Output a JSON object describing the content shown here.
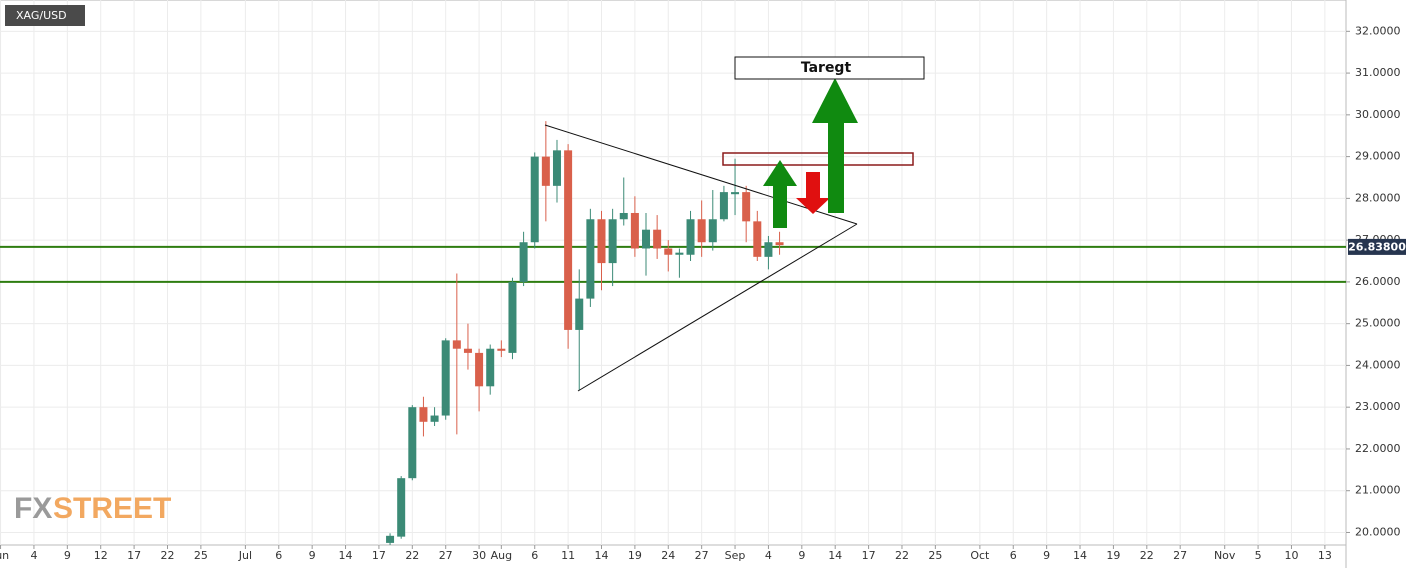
{
  "chart_data": {
    "type": "candlestick",
    "title": "XAG/USD",
    "x": [
      35,
      36,
      37,
      38,
      39,
      40,
      41,
      42,
      43,
      44,
      45,
      46,
      47,
      48,
      49,
      50,
      51,
      52,
      53,
      54,
      55,
      56,
      57,
      58,
      59,
      60,
      61,
      62,
      63,
      64,
      65,
      66,
      67,
      68,
      69,
      70
    ],
    "open": [
      19.75,
      19.9,
      21.3,
      23.0,
      22.65,
      22.8,
      24.6,
      24.4,
      24.3,
      23.5,
      24.4,
      24.3,
      26.0,
      26.95,
      29.0,
      28.3,
      29.15,
      24.85,
      25.6,
      27.5,
      26.45,
      27.5,
      27.65,
      26.8,
      27.25,
      26.8,
      26.65,
      26.65,
      27.5,
      26.95,
      27.5,
      28.1,
      28.15,
      27.45,
      26.6,
      26.95
    ],
    "high": [
      19.98,
      21.35,
      23.05,
      23.25,
      23.0,
      24.65,
      26.2,
      25.0,
      24.4,
      24.5,
      24.6,
      26.1,
      27.2,
      29.1,
      29.85,
      29.4,
      29.3,
      26.3,
      27.75,
      27.7,
      27.75,
      28.5,
      28.05,
      27.65,
      27.6,
      27.0,
      26.8,
      27.7,
      27.95,
      28.2,
      28.3,
      28.95,
      28.3,
      27.7,
      27.1,
      27.2
    ],
    "low": [
      19.7,
      19.85,
      21.25,
      22.3,
      22.55,
      22.7,
      22.35,
      23.9,
      22.9,
      23.3,
      24.2,
      24.15,
      25.9,
      26.8,
      27.45,
      27.9,
      24.4,
      23.4,
      25.4,
      25.8,
      25.9,
      27.35,
      26.6,
      26.15,
      26.55,
      26.25,
      26.1,
      26.5,
      26.6,
      26.75,
      27.45,
      27.6,
      26.95,
      26.5,
      26.3,
      26.65
    ],
    "close": [
      19.92,
      21.3,
      23.0,
      22.65,
      22.8,
      24.6,
      24.4,
      24.3,
      23.5,
      24.4,
      24.35,
      26.0,
      26.95,
      29.0,
      28.3,
      29.15,
      24.85,
      25.6,
      27.5,
      26.45,
      27.5,
      27.65,
      26.8,
      27.25,
      26.8,
      26.65,
      26.7,
      27.5,
      26.95,
      27.5,
      28.15,
      28.15,
      27.45,
      26.6,
      26.95,
      26.88
    ],
    "up_color": "#3b8a76",
    "down_color": "#d9604b",
    "xlim": [
      -0.05,
      120.9
    ],
    "xticks": [
      {
        "value": 0,
        "label": "Jun"
      },
      {
        "value": 3,
        "label": "4"
      },
      {
        "value": 6,
        "label": "9"
      },
      {
        "value": 9,
        "label": "12"
      },
      {
        "value": 12,
        "label": "17"
      },
      {
        "value": 15,
        "label": "22"
      },
      {
        "value": 18,
        "label": "25"
      },
      {
        "value": 22,
        "label": "Jul"
      },
      {
        "value": 25,
        "label": "6"
      },
      {
        "value": 28,
        "label": "9"
      },
      {
        "value": 31,
        "label": "14"
      },
      {
        "value": 34,
        "label": "17"
      },
      {
        "value": 37,
        "label": "22"
      },
      {
        "value": 40,
        "label": "27"
      },
      {
        "value": 43,
        "label": "30"
      },
      {
        "value": 45,
        "label": "Aug"
      },
      {
        "value": 48,
        "label": "6"
      },
      {
        "value": 51,
        "label": "11"
      },
      {
        "value": 54,
        "label": "14"
      },
      {
        "value": 57,
        "label": "19"
      },
      {
        "value": 60,
        "label": "24"
      },
      {
        "value": 63,
        "label": "27"
      },
      {
        "value": 66,
        "label": "Sep"
      },
      {
        "value": 69,
        "label": "4"
      },
      {
        "value": 72,
        "label": "9"
      },
      {
        "value": 75,
        "label": "14"
      },
      {
        "value": 78,
        "label": "17"
      },
      {
        "value": 81,
        "label": "22"
      },
      {
        "value": 84,
        "label": "25"
      },
      {
        "value": 88,
        "label": "Oct"
      },
      {
        "value": 91,
        "label": "6"
      },
      {
        "value": 94,
        "label": "9"
      },
      {
        "value": 97,
        "label": "14"
      },
      {
        "value": 100,
        "label": "19"
      },
      {
        "value": 103,
        "label": "22"
      },
      {
        "value": 106,
        "label": "27"
      },
      {
        "value": 110,
        "label": "Nov"
      },
      {
        "value": 113,
        "label": "5"
      },
      {
        "value": 116,
        "label": "10"
      },
      {
        "value": 119,
        "label": "13"
      }
    ],
    "ylim": [
      19.7,
      32.75
    ],
    "yticks": [
      {
        "value": 20,
        "label": "20.0000"
      },
      {
        "value": 21,
        "label": "21.0000"
      },
      {
        "value": 22,
        "label": "22.0000"
      },
      {
        "value": 23,
        "label": "23.0000"
      },
      {
        "value": 24,
        "label": "24.0000"
      },
      {
        "value": 25,
        "label": "25.0000"
      },
      {
        "value": 26,
        "label": "26.0000"
      },
      {
        "value": 27,
        "label": "27.0000"
      },
      {
        "value": 28,
        "label": "28.0000"
      },
      {
        "value": 29,
        "label": "29.0000"
      },
      {
        "value": 30,
        "label": "30.0000"
      },
      {
        "value": 31,
        "label": "31.0000"
      },
      {
        "value": 32,
        "label": "32.0000"
      }
    ],
    "grid": true,
    "last_price": {
      "value": 26.838,
      "label": "26.83800"
    },
    "levels": [
      26.0
    ],
    "level_color": "#2e7d10",
    "annotation": "Taregt",
    "watermark": [
      "FX",
      "STREET"
    ]
  }
}
